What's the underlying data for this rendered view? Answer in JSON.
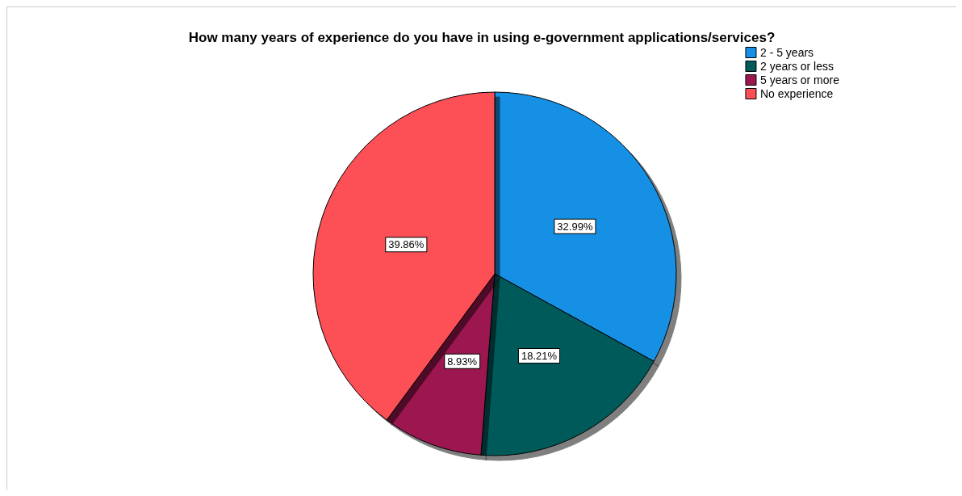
{
  "chart_data": {
    "type": "pie",
    "title": "How many years of experience do you have in using e-government applications/services?",
    "categories": [
      "2 - 5 years",
      "2 years or less",
      "5 years or more",
      "No experience"
    ],
    "values": [
      32.99,
      18.21,
      8.93,
      39.86
    ],
    "colors": [
      "#1490e4",
      "#005a5a",
      "#9c1750",
      "#fc4f57"
    ],
    "value_labels": [
      "32.99%",
      "18.21%",
      "8.93%",
      "39.86%"
    ],
    "legend": "top right"
  }
}
